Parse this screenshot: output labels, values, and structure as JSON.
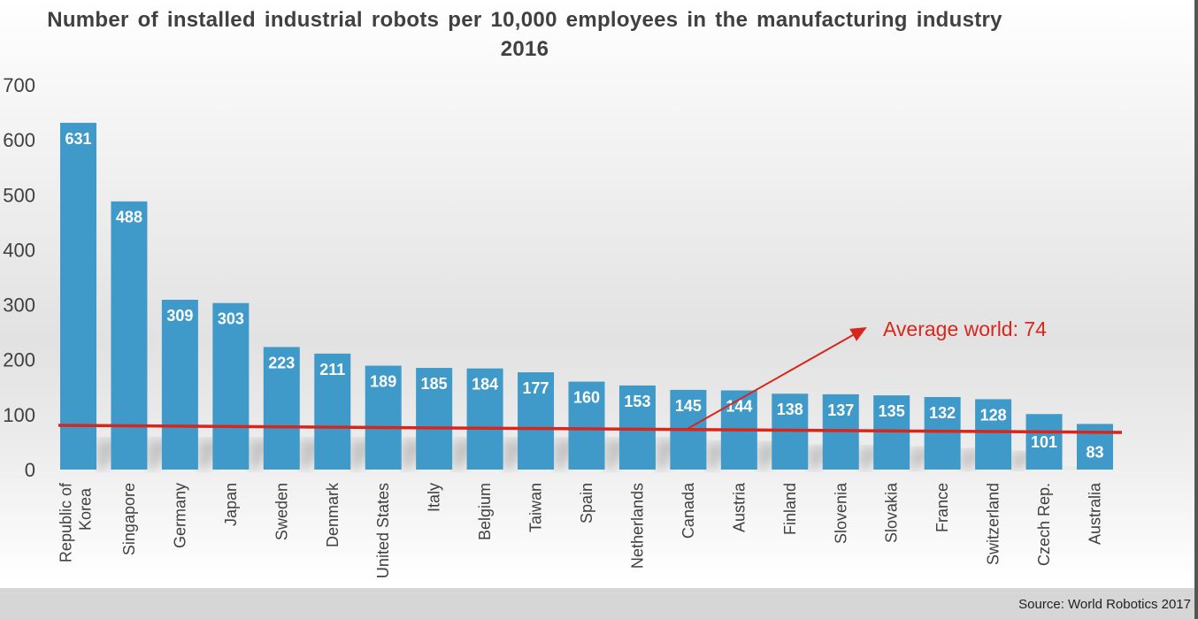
{
  "chart_data": {
    "type": "bar",
    "title": "Number of installed industrial robots per 10,000 employees in the manufacturing industry 2016",
    "categories": [
      "Republic of Korea",
      "Singapore",
      "Germany",
      "Japan",
      "Sweden",
      "Denmark",
      "United States",
      "Italy",
      "Belgium",
      "Taiwan",
      "Spain",
      "Netherlands",
      "Canada",
      "Austria",
      "Finland",
      "Slovenia",
      "Slovakia",
      "France",
      "Switzerland",
      "Czech Rep.",
      "Australia"
    ],
    "values": [
      631,
      488,
      309,
      303,
      223,
      211,
      189,
      185,
      184,
      177,
      160,
      153,
      145,
      144,
      138,
      137,
      135,
      132,
      128,
      101,
      83
    ],
    "ylim": [
      0,
      700
    ],
    "yticks": [
      0,
      100,
      200,
      300,
      400,
      500,
      600,
      700
    ],
    "xlabel": "",
    "ylabel": "",
    "grid": false,
    "bar_color": "#3f9ac9",
    "reference_line": {
      "label": "Average world: 74",
      "value": 74,
      "color": "#d9261c"
    },
    "source": "Source: World Robotics 2017"
  }
}
